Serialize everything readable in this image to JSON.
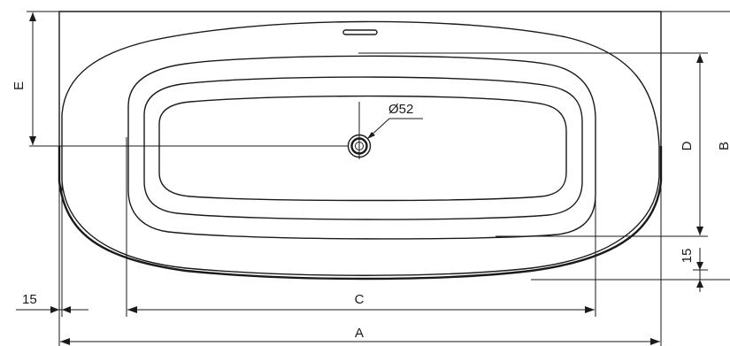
{
  "dimensions": {
    "overall_length": "A",
    "overall_width": "B",
    "inner_length": "C",
    "inner_width": "D",
    "drain_offset": "E",
    "rim_left": "15",
    "rim_bottom": "15",
    "drain_diameter": "Ø52"
  }
}
